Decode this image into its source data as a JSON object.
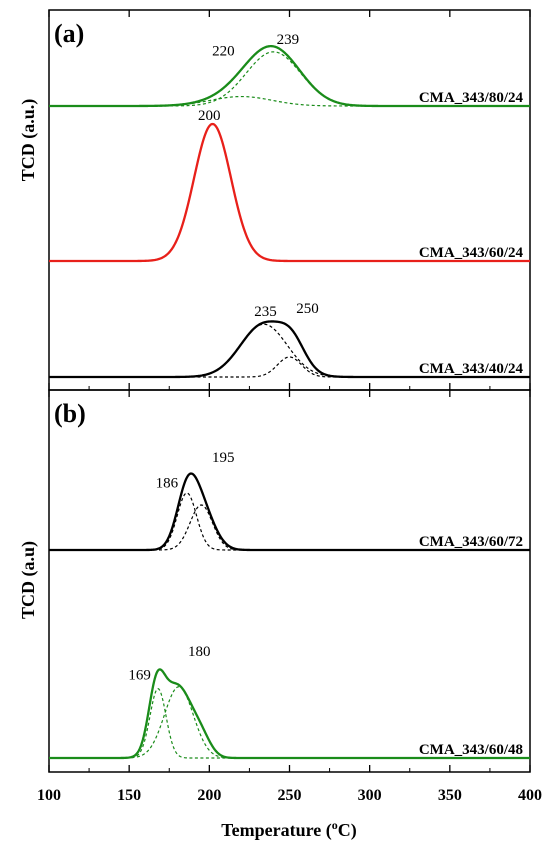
{
  "chart_data": {
    "type": "line",
    "xlabel": "Temperature (°C)",
    "xlim": [
      100,
      400
    ],
    "xticks": [
      100,
      150,
      200,
      250,
      300,
      350,
      400
    ],
    "panels": [
      {
        "label": "(a)",
        "ylabel": "TCD (a.u.)",
        "traces": [
          {
            "sample": "CMA_343/80/24",
            "color": "#1a8c1a",
            "baseline": 0.89,
            "measured": {
              "peaks": [
                {
                  "center": 220,
                  "height": 0.11,
                  "width": 19
                },
                {
                  "center": 240,
                  "height": 0.63,
                  "width": 17
                }
              ]
            },
            "deconvoluted": [
              {
                "center": 220,
                "height": 0.11,
                "width": 19
              },
              {
                "center": 240,
                "height": 0.63,
                "width": 17
              }
            ],
            "peak_labels": [
              {
                "text": "220",
                "x": 220
              },
              {
                "text": "239",
                "x": 239
              }
            ]
          },
          {
            "sample": "CMA_343/60/24",
            "color": "#e8201a",
            "baseline": 0.435,
            "measured": {
              "peaks": [
                {
                  "center": 202,
                  "height": 1.0,
                  "width": 11.5
                }
              ]
            },
            "deconvoluted": [],
            "peak_labels": [
              {
                "text": "200",
                "x": 200
              }
            ]
          },
          {
            "sample": "CMA_343/40/24",
            "color": "#000000",
            "baseline": 0.0,
            "measured": {
              "peaks": [
                {
                  "center": 234,
                  "height": 0.58,
                  "width": 14.5
                },
                {
                  "center": 252,
                  "height": 0.24,
                  "width": 8
                }
              ]
            },
            "deconvoluted": [
              {
                "center": 234,
                "height": 0.58,
                "width": 14.5
              },
              {
                "center": 250,
                "height": 0.22,
                "width": 7.5
              }
            ],
            "peak_labels": [
              {
                "text": "235",
                "x": 235
              },
              {
                "text": "250",
                "x": 250
              }
            ]
          }
        ]
      },
      {
        "label": "(b)",
        "ylabel": "TCD (a.u)",
        "traces": [
          {
            "sample": "CMA_343/60/72",
            "color": "#000000",
            "baseline": 0.505,
            "measured": {
              "peaks": [
                {
                  "center": 186,
                  "height": 0.34,
                  "width": 6.5
                },
                {
                  "center": 195,
                  "height": 0.27,
                  "width": 8
                }
              ]
            },
            "deconvoluted": [
              {
                "center": 186,
                "height": 0.38,
                "width": 6
              },
              {
                "center": 195,
                "height": 0.3,
                "width": 7
              }
            ],
            "peak_labels": [
              {
                "text": "186",
                "x": 186
              },
              {
                "text": "195",
                "x": 195
              }
            ]
          },
          {
            "sample": "CMA_343/60/48",
            "color": "#1a8c1a",
            "baseline": 0.0,
            "measured": {
              "peaks": [
                {
                  "center": 167,
                  "height": 0.3,
                  "width": 5
                },
                {
                  "center": 180,
                  "height": 0.36,
                  "width": 9
                },
                {
                  "center": 195,
                  "height": 0.08,
                  "width": 6
                }
              ]
            },
            "deconvoluted": [
              {
                "center": 168,
                "height": 0.35,
                "width": 5
              },
              {
                "center": 181,
                "height": 0.36,
                "width": 9
              }
            ],
            "peak_labels": [
              {
                "text": "169",
                "x": 169
              },
              {
                "text": "180",
                "x": 180
              }
            ]
          }
        ]
      }
    ]
  }
}
